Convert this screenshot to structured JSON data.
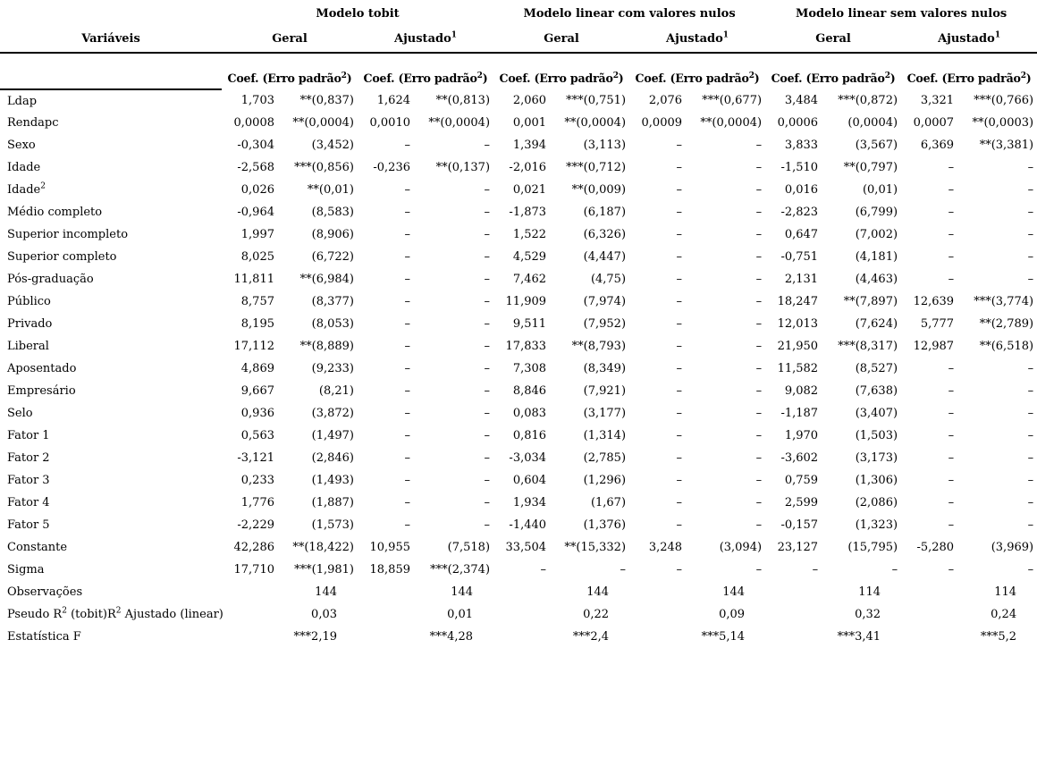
{
  "table": {
    "header": {
      "variables_label": "Variáveis",
      "groups": [
        {
          "title": "Modelo tobit"
        },
        {
          "title": "Modelo linear com valores nulos"
        },
        {
          "title": "Modelo linear sem valores nulos"
        }
      ],
      "models": [
        {
          "text": "Geral",
          "sup": ""
        },
        {
          "text": "Ajustado",
          "sup": "1"
        },
        {
          "text": "Geral",
          "sup": ""
        },
        {
          "text": "Ajustado",
          "sup": "1"
        },
        {
          "text": "Geral",
          "sup": ""
        },
        {
          "text": "Ajustado",
          "sup": "1"
        }
      ],
      "coef": {
        "prefix": "Coef. (Erro padrão",
        "sup": "2",
        "suffix": ")"
      }
    },
    "rows": [
      {
        "label": [
          {
            "t": "Ldap"
          }
        ],
        "cells": [
          [
            "1,703",
            "**(0,837)"
          ],
          [
            "1,624",
            "**(0,813)"
          ],
          [
            "2,060",
            "***(0,751)"
          ],
          [
            "2,076",
            "***(0,677)"
          ],
          [
            "3,484",
            "***(0,872)"
          ],
          [
            "3,321",
            "***(0,766)"
          ]
        ]
      },
      {
        "label": [
          {
            "t": "Rendapc"
          }
        ],
        "cells": [
          [
            "0,0008",
            "**(0,0004)"
          ],
          [
            "0,0010",
            "**(0,0004)"
          ],
          [
            "0,001",
            "**(0,0004)"
          ],
          [
            "0,0009",
            "**(0,0004)"
          ],
          [
            "0,0006",
            "(0,0004)"
          ],
          [
            "0,0007",
            "**(0,0003)"
          ]
        ]
      },
      {
        "label": [
          {
            "t": "Sexo"
          }
        ],
        "cells": [
          [
            "-0,304",
            "(3,452)"
          ],
          [
            "–",
            "–"
          ],
          [
            "1,394",
            "(3,113)"
          ],
          [
            "–",
            "–"
          ],
          [
            "3,833",
            "(3,567)"
          ],
          [
            "6,369",
            "**(3,381)"
          ]
        ]
      },
      {
        "label": [
          {
            "t": "Idade"
          }
        ],
        "cells": [
          [
            "-2,568",
            "***(0,856)"
          ],
          [
            "-0,236",
            "**(0,137)"
          ],
          [
            "-2,016",
            "***(0,712)"
          ],
          [
            "–",
            "–"
          ],
          [
            "-1,510",
            "**(0,797)"
          ],
          [
            "–",
            "–"
          ]
        ]
      },
      {
        "label": [
          {
            "t": "Idade"
          },
          {
            "t": "2",
            "sup": true
          }
        ],
        "cells": [
          [
            "0,026",
            "**(0,01)"
          ],
          [
            "–",
            "–"
          ],
          [
            "0,021",
            "**(0,009)"
          ],
          [
            "–",
            "–"
          ],
          [
            "0,016",
            "(0,01)"
          ],
          [
            "–",
            "–"
          ]
        ]
      },
      {
        "label": [
          {
            "t": "Médio completo"
          }
        ],
        "cells": [
          [
            "-0,964",
            "(8,583)"
          ],
          [
            "–",
            "–"
          ],
          [
            "-1,873",
            "(6,187)"
          ],
          [
            "–",
            "–"
          ],
          [
            "-2,823",
            "(6,799)"
          ],
          [
            "–",
            "–"
          ]
        ]
      },
      {
        "label": [
          {
            "t": "Superior incompleto"
          }
        ],
        "cells": [
          [
            "1,997",
            "(8,906)"
          ],
          [
            "–",
            "–"
          ],
          [
            "1,522",
            "(6,326)"
          ],
          [
            "–",
            "–"
          ],
          [
            "0,647",
            "(7,002)"
          ],
          [
            "–",
            "–"
          ]
        ]
      },
      {
        "label": [
          {
            "t": "Superior completo"
          }
        ],
        "cells": [
          [
            "8,025",
            "(6,722)"
          ],
          [
            "–",
            "–"
          ],
          [
            "4,529",
            "(4,447)"
          ],
          [
            "–",
            "–"
          ],
          [
            "-0,751",
            "(4,181)"
          ],
          [
            "–",
            "–"
          ]
        ]
      },
      {
        "label": [
          {
            "t": "Pós-graduação"
          }
        ],
        "cells": [
          [
            "11,811",
            "**(6,984)"
          ],
          [
            "–",
            "–"
          ],
          [
            "7,462",
            "(4,75)"
          ],
          [
            "–",
            "–"
          ],
          [
            "2,131",
            "(4,463)"
          ],
          [
            "–",
            "–"
          ]
        ]
      },
      {
        "label": [
          {
            "t": "Público"
          }
        ],
        "cells": [
          [
            "8,757",
            "(8,377)"
          ],
          [
            "–",
            "–"
          ],
          [
            "11,909",
            "(7,974)"
          ],
          [
            "–",
            "–"
          ],
          [
            "18,247",
            "**(7,897)"
          ],
          [
            "12,639",
            "***(3,774)"
          ]
        ]
      },
      {
        "label": [
          {
            "t": "Privado"
          }
        ],
        "cells": [
          [
            "8,195",
            "(8,053)"
          ],
          [
            "–",
            "–"
          ],
          [
            "9,511",
            "(7,952)"
          ],
          [
            "–",
            "–"
          ],
          [
            "12,013",
            "(7,624)"
          ],
          [
            "5,777",
            "**(2,789)"
          ]
        ]
      },
      {
        "label": [
          {
            "t": "Liberal"
          }
        ],
        "cells": [
          [
            "17,112",
            "**(8,889)"
          ],
          [
            "–",
            "–"
          ],
          [
            "17,833",
            "**(8,793)"
          ],
          [
            "–",
            "–"
          ],
          [
            "21,950",
            "***(8,317)"
          ],
          [
            "12,987",
            "**(6,518)"
          ]
        ]
      },
      {
        "label": [
          {
            "t": "Aposentado"
          }
        ],
        "cells": [
          [
            "4,869",
            "(9,233)"
          ],
          [
            "–",
            "–"
          ],
          [
            "7,308",
            "(8,349)"
          ],
          [
            "–",
            "–"
          ],
          [
            "11,582",
            "(8,527)"
          ],
          [
            "–",
            "–"
          ]
        ]
      },
      {
        "label": [
          {
            "t": "Empresário"
          }
        ],
        "cells": [
          [
            "9,667",
            "(8,21)"
          ],
          [
            "–",
            "–"
          ],
          [
            "8,846",
            "(7,921)"
          ],
          [
            "–",
            "–"
          ],
          [
            "9,082",
            "(7,638)"
          ],
          [
            "–",
            "–"
          ]
        ]
      },
      {
        "label": [
          {
            "t": "Selo"
          }
        ],
        "cells": [
          [
            "0,936",
            "(3,872)"
          ],
          [
            "–",
            "–"
          ],
          [
            "0,083",
            "(3,177)"
          ],
          [
            "–",
            "–"
          ],
          [
            "-1,187",
            "(3,407)"
          ],
          [
            "–",
            "–"
          ]
        ]
      },
      {
        "label": [
          {
            "t": "Fator 1"
          }
        ],
        "cells": [
          [
            "0,563",
            "(1,497)"
          ],
          [
            "–",
            "–"
          ],
          [
            "0,816",
            "(1,314)"
          ],
          [
            "–",
            "–"
          ],
          [
            "1,970",
            "(1,503)"
          ],
          [
            "–",
            "–"
          ]
        ]
      },
      {
        "label": [
          {
            "t": "Fator 2"
          }
        ],
        "cells": [
          [
            "-3,121",
            "(2,846)"
          ],
          [
            "–",
            "–"
          ],
          [
            "-3,034",
            "(2,785)"
          ],
          [
            "–",
            "–"
          ],
          [
            "-3,602",
            "(3,173)"
          ],
          [
            "–",
            "–"
          ]
        ]
      },
      {
        "label": [
          {
            "t": "Fator 3"
          }
        ],
        "cells": [
          [
            "0,233",
            "(1,493)"
          ],
          [
            "–",
            "–"
          ],
          [
            "0,604",
            "(1,296)"
          ],
          [
            "–",
            "–"
          ],
          [
            "0,759",
            "(1,306)"
          ],
          [
            "–",
            "–"
          ]
        ]
      },
      {
        "label": [
          {
            "t": "Fator 4"
          }
        ],
        "cells": [
          [
            "1,776",
            "(1,887)"
          ],
          [
            "–",
            "–"
          ],
          [
            "1,934",
            "(1,67)"
          ],
          [
            "–",
            "–"
          ],
          [
            "2,599",
            "(2,086)"
          ],
          [
            "–",
            "–"
          ]
        ]
      },
      {
        "label": [
          {
            "t": "Fator 5"
          }
        ],
        "cells": [
          [
            "-2,229",
            "(1,573)"
          ],
          [
            "–",
            "–"
          ],
          [
            "-1,440",
            "(1,376)"
          ],
          [
            "–",
            "–"
          ],
          [
            "-0,157",
            "(1,323)"
          ],
          [
            "–",
            "–"
          ]
        ]
      },
      {
        "label": [
          {
            "t": "Constante"
          }
        ],
        "cells": [
          [
            "42,286",
            "**(18,422)"
          ],
          [
            "10,955",
            "(7,518)"
          ],
          [
            "33,504",
            "**(15,332)"
          ],
          [
            "3,248",
            "(3,094)"
          ],
          [
            "23,127",
            "(15,795)"
          ],
          [
            "-5,280",
            "(3,969)"
          ]
        ]
      },
      {
        "label": [
          {
            "t": "Sigma"
          }
        ],
        "cells": [
          [
            "17,710",
            "***(1,981)"
          ],
          [
            "18,859",
            "***(2,374)"
          ],
          [
            "–",
            "–"
          ],
          [
            "–",
            "–"
          ],
          [
            "–",
            "–"
          ],
          [
            "–",
            "–"
          ]
        ]
      },
      {
        "label": [
          {
            "t": "Observações"
          }
        ],
        "values": [
          "144",
          "144",
          "144",
          "144",
          "114",
          "114"
        ]
      },
      {
        "label": [
          {
            "t": "Pseudo R"
          },
          {
            "t": "2",
            "sup": true
          },
          {
            "t": " (tobit)R"
          },
          {
            "t": "2",
            "sup": true
          },
          {
            "t": " Ajustado (linear)"
          }
        ],
        "values": [
          "0,03",
          "0,01",
          "0,22",
          "0,09",
          "0,32",
          "0,24"
        ]
      },
      {
        "label": [
          {
            "t": "Estatística F"
          }
        ],
        "values": [
          "***2,19",
          "***4,28",
          "***2,4",
          "***5,14",
          "***3,41",
          "***5,2"
        ]
      }
    ]
  }
}
